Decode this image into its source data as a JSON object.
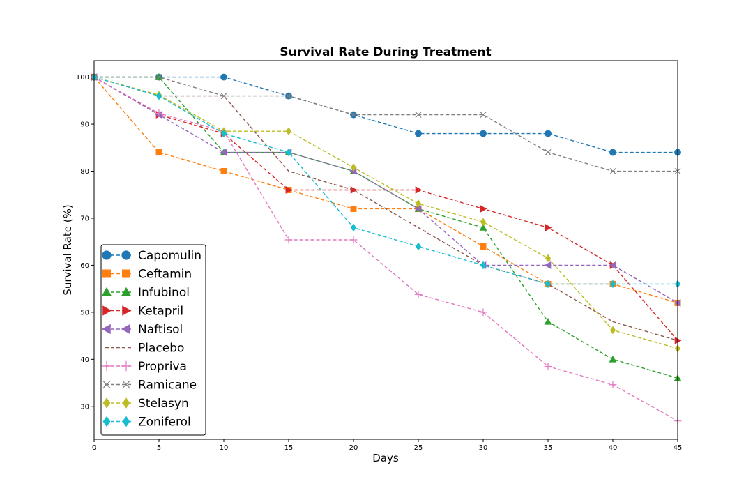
{
  "chart_data": {
    "type": "line",
    "title": "Survival Rate During Treatment",
    "xlabel": "Days",
    "ylabel": "Survival Rate (%)",
    "xlim": [
      0,
      45
    ],
    "ylim": [
      23,
      103.5
    ],
    "xticks": [
      0,
      5,
      10,
      15,
      20,
      25,
      30,
      35,
      40,
      45
    ],
    "yticks": [
      30,
      40,
      50,
      60,
      70,
      80,
      90,
      100
    ],
    "grid": false,
    "legend_position": "lower-left",
    "x": [
      0,
      5,
      10,
      15,
      20,
      25,
      30,
      35,
      40,
      45
    ],
    "series": [
      {
        "name": "Capomulin",
        "color": "#1f77b4",
        "marker": "circle",
        "dash": "dashed",
        "values": [
          100,
          100,
          100,
          96,
          92,
          88,
          88,
          88,
          84,
          84
        ]
      },
      {
        "name": "Ceftamin",
        "color": "#ff7f0e",
        "marker": "square",
        "dash": "dashed",
        "values": [
          100,
          84,
          80,
          76,
          72,
          72,
          64,
          56,
          56,
          52
        ]
      },
      {
        "name": "Infubinol",
        "color": "#2ca02c",
        "marker": "triangle-up",
        "dash": "dashed",
        "values": [
          100,
          100,
          84,
          84,
          80,
          72,
          68,
          48,
          40,
          36
        ]
      },
      {
        "name": "Ketapril",
        "color": "#d62728",
        "marker": "triangle-right",
        "dash": "dashed",
        "values": [
          100,
          92,
          88,
          76,
          76,
          76,
          72,
          68,
          60,
          44
        ]
      },
      {
        "name": "Naftisol",
        "color": "#9467bd",
        "marker": "triangle-left",
        "dash": "dashed",
        "values": [
          100,
          92,
          84,
          84,
          80,
          72,
          60,
          60,
          60,
          52
        ]
      },
      {
        "name": "Placebo",
        "color": "#8c564b",
        "marker": "none",
        "dash": "dashed",
        "values": [
          100,
          96,
          96,
          80,
          76,
          68,
          60,
          56,
          48,
          44
        ]
      },
      {
        "name": "Propriva",
        "color": "#e377c2",
        "marker": "plus",
        "dash": "dashed",
        "values": [
          100,
          92.3,
          88.5,
          65.4,
          65.4,
          53.8,
          50,
          38.5,
          34.6,
          26.9
        ]
      },
      {
        "name": "Ramicane",
        "color": "#7f7f7f",
        "marker": "x",
        "dash": "dashed",
        "values": [
          100,
          100,
          96,
          96,
          92,
          92,
          92,
          84,
          80,
          80
        ]
      },
      {
        "name": "Stelasyn",
        "color": "#bcbd22",
        "marker": "diamond",
        "dash": "dashed",
        "values": [
          100,
          96.2,
          88.5,
          88.5,
          80.8,
          73.1,
          69.2,
          61.5,
          46.2,
          42.3
        ]
      },
      {
        "name": "Zoniferol",
        "color": "#17becf",
        "marker": "diamond",
        "dash": "dashed",
        "values": [
          100,
          96,
          88,
          84,
          68,
          64,
          60,
          56,
          56,
          56
        ]
      }
    ]
  }
}
